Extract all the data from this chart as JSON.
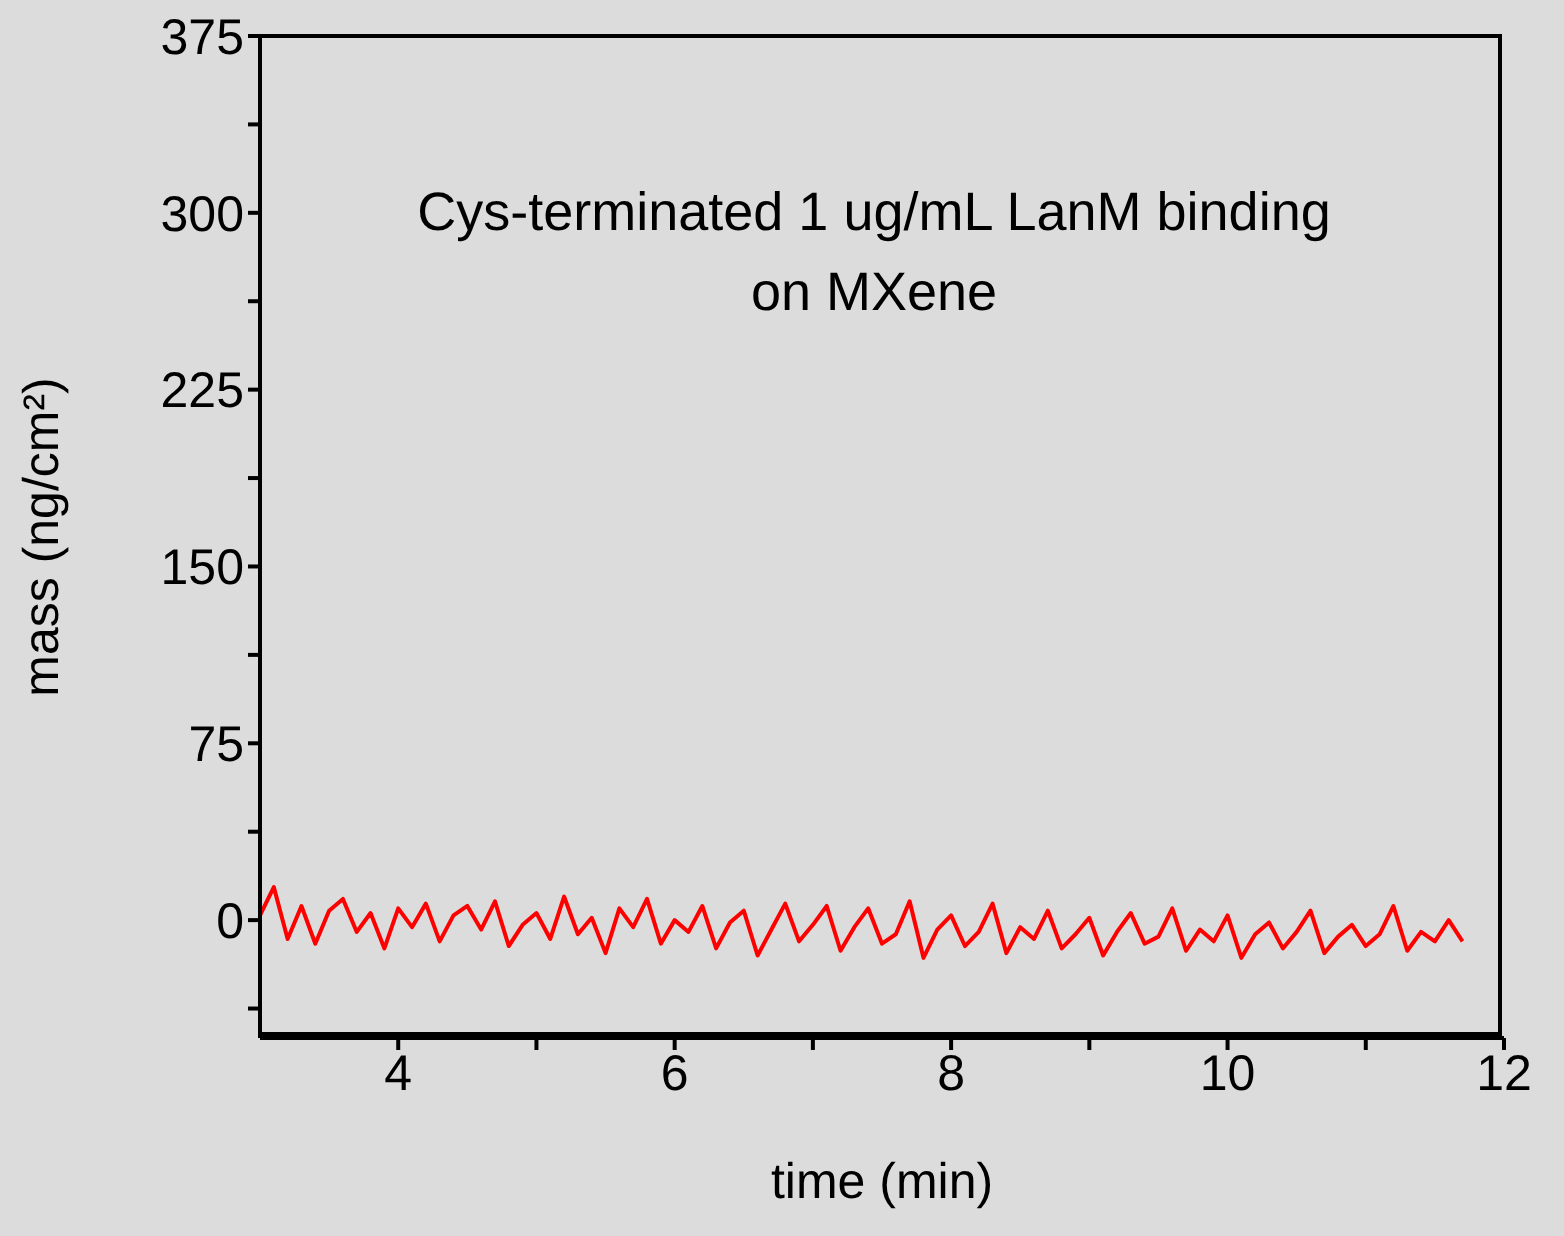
{
  "chart_data": {
    "type": "line",
    "xlabel": "time (min)",
    "ylabel": "mass (ng/cm²)",
    "annotations": [
      "Cys-terminated 1 ug/mL LanM binding on MXene"
    ],
    "xlim": [
      3,
      12
    ],
    "xticks": [
      4,
      {
        "value": 5,
        "label": null
      },
      6,
      {
        "value": 7,
        "label": null
      },
      8,
      {
        "value": 9,
        "label": null
      },
      10,
      {
        "value": 11,
        "label": null
      },
      12
    ],
    "ylim": [
      -50,
      375
    ],
    "yticks": [
      {
        "value": -37.5,
        "label": null
      },
      0,
      {
        "value": 37.5,
        "label": null
      },
      75,
      {
        "value": 112.5,
        "label": null
      },
      150,
      {
        "value": 187.5,
        "label": null
      },
      225,
      {
        "value": 262.5,
        "label": null
      },
      300,
      {
        "value": 337.5,
        "label": null
      },
      375
    ],
    "marker": "none",
    "line_style": "solid",
    "series": [
      {
        "color": "#ff0000",
        "x": [
          3,
          3.1,
          3.2,
          3.3,
          3.4,
          3.5,
          3.6,
          3.7,
          3.8,
          3.9,
          4,
          4.1,
          4.2,
          4.3,
          4.4,
          4.5,
          4.6,
          4.7,
          4.8,
          4.9,
          5,
          5.1,
          5.2,
          5.3,
          5.4,
          5.5,
          5.6,
          5.7,
          5.8,
          5.9,
          6,
          6.1,
          6.2,
          6.3,
          6.4,
          6.5,
          6.6,
          6.7,
          6.8,
          6.9,
          7,
          7.1,
          7.2,
          7.3,
          7.4,
          7.5,
          7.6,
          7.7,
          7.8,
          7.9,
          8,
          8.1,
          8.2,
          8.3,
          8.4,
          8.5,
          8.6,
          8.7,
          8.8,
          8.9,
          9,
          9.1,
          9.2,
          9.3,
          9.4,
          9.5,
          9.6,
          9.7,
          9.8,
          9.9,
          10,
          10.1,
          10.2,
          10.3,
          10.4,
          10.5,
          10.6,
          10.7,
          10.8,
          10.9,
          11,
          11.1,
          11.2,
          11.3,
          11.4,
          11.5,
          11.6,
          11.7
        ],
        "values": [
          2,
          14,
          -8,
          6,
          -10,
          4,
          9,
          -5,
          3,
          -12,
          5,
          -3,
          7,
          -9,
          2,
          6,
          -4,
          8,
          -11,
          -2,
          3,
          -8,
          10,
          -6,
          1,
          -14,
          5,
          -3,
          9,
          -10,
          0,
          -5,
          6,
          -12,
          -1,
          4,
          -15,
          -4,
          7,
          -9,
          -2,
          6,
          -13,
          -3,
          5,
          -10,
          -6,
          8,
          -16,
          -4,
          2,
          -11,
          -5,
          7,
          -14,
          -3,
          -8,
          4,
          -12,
          -6,
          1,
          -15,
          -5,
          3,
          -10,
          -7,
          5,
          -13,
          -4,
          -9,
          2,
          -16,
          -6,
          -1,
          -12,
          -5,
          4,
          -14,
          -7,
          -2,
          -11,
          -6,
          6,
          -13,
          -5,
          -9,
          0,
          -9
        ]
      }
    ]
  }
}
